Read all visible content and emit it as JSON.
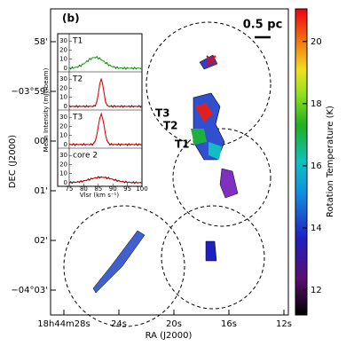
{
  "chart_data": {
    "type": "map",
    "panel_label": "(b)",
    "scale_label": "0.5 pc",
    "x_label": "RA (J2000)",
    "y_label": "DEC (J2000)",
    "x_tick_labels": [
      "18h44m28s",
      "24s",
      "20s",
      "16s",
      "12s"
    ],
    "y_tick_labels": [
      "58'",
      "−03°59'",
      "00'",
      "01'",
      "02'",
      "−04°03'"
    ],
    "source_labels": [
      "T3",
      "T2",
      "T1"
    ],
    "colorbar": {
      "label": "Rotation Temperature (K)",
      "ylim": [
        11.2,
        21.05
      ],
      "yticks": [
        12,
        14,
        16,
        18,
        20
      ]
    },
    "inset": {
      "x_label": "Vlsr (km s⁻¹)",
      "y_label": "Mean Intensity (mJy/beam)",
      "panels": [
        "T1",
        "T2",
        "T3",
        "core 2"
      ],
      "xlim": [
        75,
        100
      ],
      "xticks": [
        75,
        80,
        85,
        90,
        95,
        100
      ],
      "ylim": [
        -4,
        38
      ],
      "yticks": [
        0,
        10,
        20,
        30
      ]
    }
  }
}
